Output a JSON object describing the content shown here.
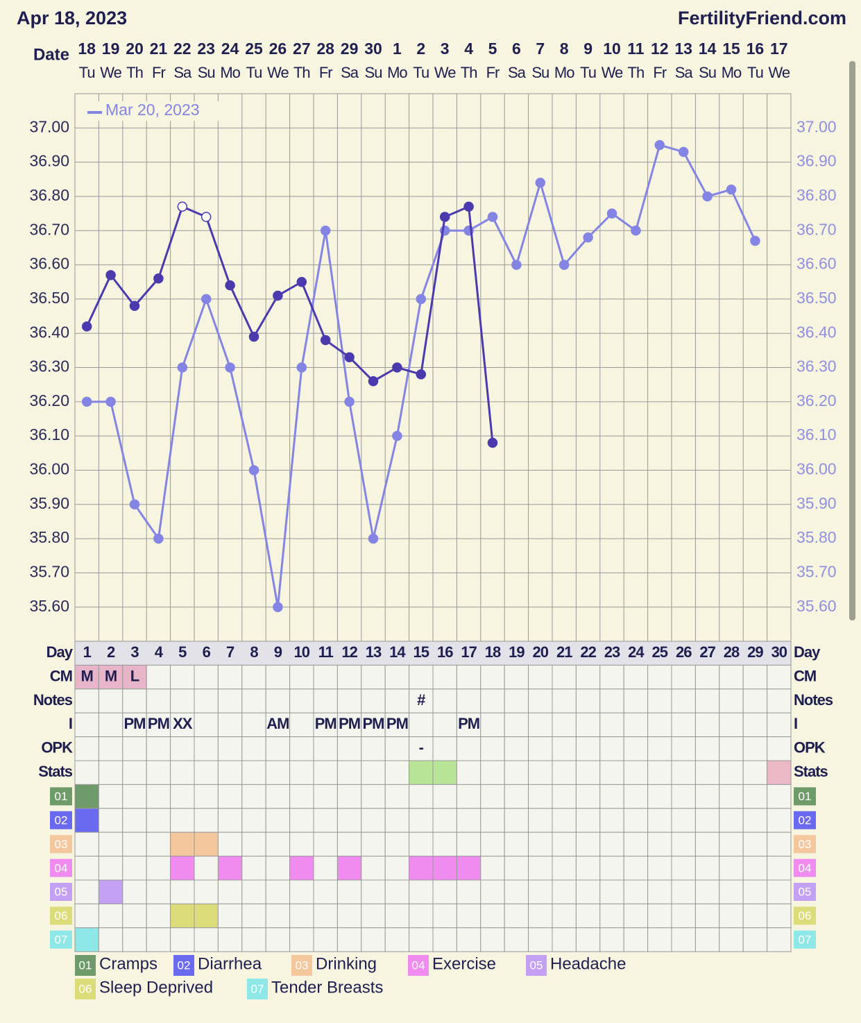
{
  "chart_data": {
    "type": "line",
    "title": "Apr 18, 2023",
    "site": "FertilityFriend.com",
    "x_label": "Date",
    "categories": [
      "18",
      "19",
      "20",
      "21",
      "22",
      "23",
      "24",
      "25",
      "26",
      "27",
      "28",
      "29",
      "30",
      "1",
      "2",
      "3",
      "4",
      "5",
      "6",
      "7",
      "8",
      "9",
      "10",
      "11",
      "12",
      "13",
      "14",
      "15",
      "16",
      "17"
    ],
    "weekdays": [
      "Tu",
      "We",
      "Th",
      "Fr",
      "Sa",
      "Su",
      "Mo",
      "Tu",
      "We",
      "Th",
      "Fr",
      "Sa",
      "Su",
      "Mo",
      "Tu",
      "We",
      "Th",
      "Fr",
      "Sa",
      "Su",
      "Mo",
      "Tu",
      "We",
      "Th",
      "Fr",
      "Sa",
      "Su",
      "Mo",
      "Tu",
      "We"
    ],
    "ylim": [
      35.5,
      37.1
    ],
    "yticks": [
      {
        "value": 35.6,
        "label": "35.60"
      },
      {
        "value": 35.7,
        "label": "35.70"
      },
      {
        "value": 35.8,
        "label": "35.80"
      },
      {
        "value": 35.9,
        "label": "35.90"
      },
      {
        "value": 36.0,
        "label": "36.00"
      },
      {
        "value": 36.1,
        "label": "36.10"
      },
      {
        "value": 36.2,
        "label": "36.20"
      },
      {
        "value": 36.3,
        "label": "36.30"
      },
      {
        "value": 36.4,
        "label": "36.40"
      },
      {
        "value": 36.5,
        "label": "36.50"
      },
      {
        "value": 36.6,
        "label": "36.60"
      },
      {
        "value": 36.7,
        "label": "36.70"
      },
      {
        "value": 36.8,
        "label": "36.80"
      },
      {
        "value": 36.9,
        "label": "36.90"
      },
      {
        "value": 37.0,
        "label": "37.00"
      }
    ],
    "grid": true,
    "series": [
      {
        "name": "Mar 20, 2023",
        "color": "#8484e4",
        "values": [
          36.2,
          36.2,
          35.9,
          35.8,
          36.3,
          36.5,
          36.3,
          36.0,
          35.6,
          36.3,
          36.7,
          36.2,
          35.8,
          36.1,
          36.5,
          36.7,
          36.7,
          36.74,
          36.6,
          36.84,
          36.6,
          36.68,
          36.75,
          36.7,
          36.95,
          36.93,
          36.8,
          36.82,
          36.67,
          null
        ]
      },
      {
        "color": "#4a3aad",
        "open_markers": [
          4,
          5
        ],
        "values": [
          36.42,
          36.57,
          36.48,
          36.56,
          36.77,
          36.74,
          36.54,
          36.39,
          36.51,
          36.55,
          36.38,
          36.33,
          36.26,
          36.3,
          36.28,
          36.74,
          36.77,
          36.08,
          null,
          null,
          null,
          null,
          null,
          null,
          null,
          null,
          null,
          null,
          null,
          null
        ]
      }
    ]
  },
  "table": {
    "day_label": "Day",
    "days": [
      1,
      2,
      3,
      4,
      5,
      6,
      7,
      8,
      9,
      10,
      11,
      12,
      13,
      14,
      15,
      16,
      17,
      18,
      19,
      20,
      21,
      22,
      23,
      24,
      25,
      26,
      27,
      28,
      29,
      30
    ],
    "rows": [
      {
        "label": "CM",
        "color": "#e8b4c8",
        "cells": [
          "M",
          "M",
          "L",
          null,
          null,
          null,
          null,
          null,
          null,
          null,
          null,
          null,
          null,
          null,
          null,
          null,
          null,
          null,
          null,
          null,
          null,
          null,
          null,
          null,
          null,
          null,
          null,
          null,
          null,
          null
        ]
      },
      {
        "label": "Notes",
        "cells": [
          null,
          null,
          null,
          null,
          null,
          null,
          null,
          null,
          null,
          null,
          null,
          null,
          null,
          null,
          "#",
          null,
          null,
          null,
          null,
          null,
          null,
          null,
          null,
          null,
          null,
          null,
          null,
          null,
          null,
          null
        ]
      },
      {
        "label": "I",
        "cells": [
          null,
          null,
          "PM",
          "PM",
          "XX",
          null,
          null,
          null,
          "AM",
          null,
          "PM",
          "PM",
          "PM",
          "PM",
          null,
          null,
          "PM",
          null,
          null,
          null,
          null,
          null,
          null,
          null,
          null,
          null,
          null,
          null,
          null,
          null
        ]
      },
      {
        "label": "OPK",
        "cells": [
          null,
          null,
          null,
          null,
          null,
          null,
          null,
          null,
          null,
          null,
          null,
          null,
          null,
          null,
          "-",
          null,
          null,
          null,
          null,
          null,
          null,
          null,
          null,
          null,
          null,
          null,
          null,
          null,
          null,
          null
        ]
      },
      {
        "label": "Stats",
        "colors": [
          null,
          null,
          null,
          null,
          null,
          null,
          null,
          null,
          null,
          null,
          null,
          null,
          null,
          null,
          "#b8e498",
          "#b8e498",
          null,
          null,
          null,
          null,
          null,
          null,
          null,
          null,
          null,
          null,
          null,
          null,
          null,
          "#ecb8c8"
        ]
      }
    ],
    "symptoms": [
      {
        "code": "01",
        "name": "Cramps",
        "color": "#6f9b6b",
        "days": [
          1
        ]
      },
      {
        "code": "02",
        "name": "Diarrhea",
        "color": "#6a6af0",
        "days": [
          1
        ]
      },
      {
        "code": "03",
        "name": "Drinking",
        "color": "#f5c79c",
        "days": [
          5,
          6
        ]
      },
      {
        "code": "04",
        "name": "Exercise",
        "color": "#f08cf0",
        "days": [
          5,
          7,
          10,
          12,
          15,
          16,
          17
        ]
      },
      {
        "code": "05",
        "name": "Headache",
        "color": "#c4a0f5",
        "days": [
          2
        ]
      },
      {
        "code": "06",
        "name": "Sleep Deprived",
        "color": "#dcdc7a",
        "days": [
          5,
          6
        ]
      },
      {
        "code": "07",
        "name": "Tender Breasts",
        "color": "#8ee8e8",
        "days": [
          1
        ]
      }
    ]
  }
}
